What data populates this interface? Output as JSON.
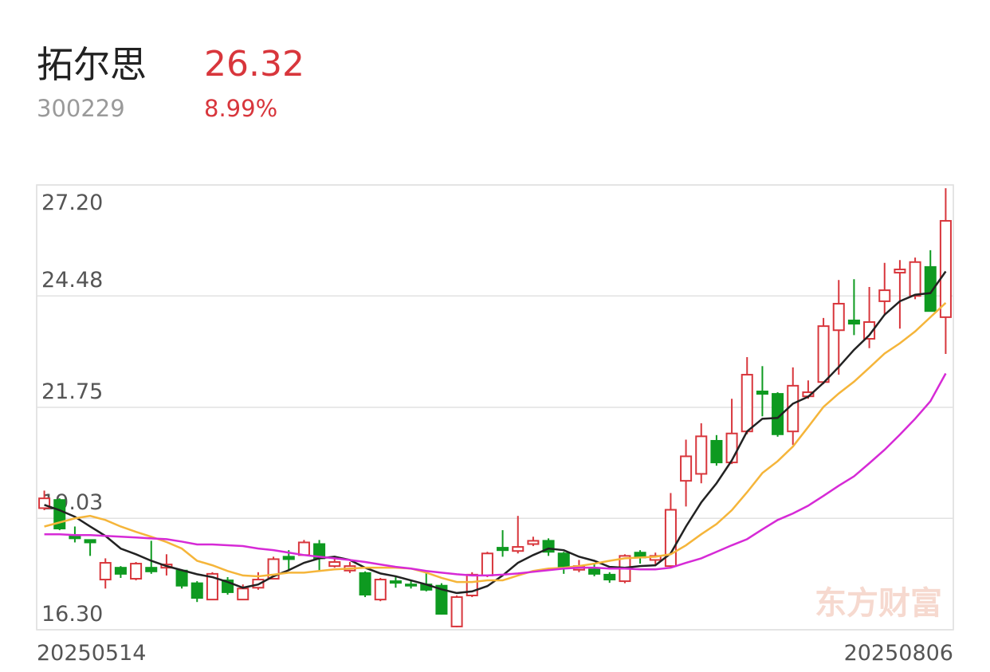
{
  "header": {
    "name": "拓尔思",
    "price": "26.32",
    "code": "300229",
    "change": "8.99%"
  },
  "chart_data": {
    "type": "candlestick",
    "watermark": "东方财富",
    "up_color": "#d8363c",
    "down_color": "#0e9a20",
    "categories": [
      "20250514",
      null,
      null,
      null,
      null,
      null,
      null,
      null,
      null,
      null,
      null,
      null,
      null,
      null,
      null,
      null,
      null,
      null,
      null,
      null,
      null,
      null,
      null,
      null,
      null,
      null,
      null,
      null,
      null,
      null,
      null,
      null,
      null,
      null,
      null,
      null,
      null,
      null,
      null,
      null,
      null,
      null,
      null,
      null,
      null,
      null,
      null,
      null,
      null,
      null,
      null,
      null,
      null,
      null,
      null,
      null,
      null,
      null,
      null,
      "20250806"
    ],
    "open": [
      19.28,
      19.48,
      18.6,
      18.5,
      17.53,
      17.82,
      17.55,
      17.82,
      17.82,
      17.75,
      17.44,
      17.04,
      17.51,
      17.04,
      17.33,
      17.55,
      18.09,
      18.13,
      18.4,
      17.86,
      17.75,
      17.69,
      17.04,
      17.49,
      17.41,
      17.41,
      17.38,
      16.38,
      17.14,
      17.63,
      18.31,
      18.23,
      18.4,
      18.48,
      18.17,
      17.77,
      17.78,
      17.65,
      17.49,
      18.19,
      18.01,
      17.86,
      19.95,
      20.12,
      20.93,
      20.4,
      21.16,
      22.14,
      22.08,
      21.16,
      22.02,
      22.37,
      23.64,
      23.88,
      23.43,
      24.35,
      25.05,
      24.48,
      25.19,
      23.96
    ],
    "close": [
      19.52,
      18.78,
      18.54,
      18.44,
      17.94,
      17.67,
      17.92,
      17.73,
      17.9,
      17.38,
      17.08,
      17.67,
      17.22,
      17.31,
      17.53,
      18.03,
      18.03,
      18.44,
      18.05,
      17.96,
      17.86,
      17.16,
      17.53,
      17.45,
      17.38,
      17.28,
      16.69,
      17.1,
      17.65,
      18.17,
      18.25,
      18.33,
      18.48,
      18.21,
      17.84,
      17.86,
      17.67,
      17.53,
      18.11,
      18.07,
      18.11,
      19.24,
      20.55,
      21.04,
      20.4,
      21.11,
      22.55,
      22.08,
      21.09,
      22.28,
      22.12,
      23.74,
      24.29,
      23.8,
      23.84,
      24.62,
      25.13,
      25.31,
      24.11,
      26.32
    ],
    "high": [
      19.71,
      19.52,
      18.83,
      18.5,
      18.05,
      17.86,
      17.96,
      18.48,
      18.15,
      17.78,
      17.49,
      17.71,
      17.59,
      17.41,
      17.71,
      18.09,
      18.25,
      18.5,
      18.5,
      18.11,
      17.96,
      17.73,
      17.57,
      17.61,
      17.51,
      17.71,
      17.44,
      17.14,
      17.71,
      18.21,
      18.74,
      19.09,
      18.58,
      18.54,
      18.21,
      18.01,
      17.94,
      17.71,
      18.15,
      18.25,
      18.19,
      19.65,
      20.96,
      21.36,
      21.07,
      21.96,
      22.98,
      22.76,
      22.12,
      22.73,
      22.41,
      23.94,
      24.87,
      24.89,
      24.7,
      25.29,
      25.36,
      25.42,
      25.6,
      27.12
    ],
    "low": [
      19.23,
      18.74,
      18.44,
      18.11,
      17.31,
      17.57,
      17.51,
      17.67,
      17.63,
      17.31,
      16.98,
      17.04,
      17.16,
      17.04,
      17.28,
      17.53,
      17.77,
      18.11,
      17.73,
      17.82,
      17.69,
      17.1,
      17.0,
      17.33,
      17.31,
      17.24,
      16.67,
      16.36,
      17.1,
      17.59,
      18.09,
      18.17,
      18.35,
      18.11,
      17.67,
      17.71,
      17.61,
      17.45,
      17.44,
      17.92,
      17.86,
      17.82,
      19.32,
      19.89,
      20.32,
      20.36,
      21.09,
      21.53,
      21.03,
      20.83,
      21.96,
      22.32,
      22.55,
      23.52,
      23.2,
      24.0,
      23.68,
      24.4,
      24.11,
      23.06
    ],
    "lines": [
      {
        "color": "#222222",
        "values": [
          19.36,
          19.23,
          19.07,
          18.83,
          18.6,
          18.29,
          18.15,
          17.99,
          17.86,
          17.76,
          17.66,
          17.59,
          17.47,
          17.33,
          17.41,
          17.61,
          17.76,
          17.94,
          18.05,
          18.09,
          18.01,
          17.82,
          17.68,
          17.61,
          17.51,
          17.41,
          17.29,
          17.2,
          17.24,
          17.37,
          17.63,
          17.94,
          18.13,
          18.29,
          18.25,
          18.09,
          17.99,
          17.84,
          17.82,
          17.86,
          17.88,
          18.17,
          18.83,
          19.42,
          19.89,
          20.45,
          21.16,
          21.47,
          21.49,
          21.84,
          22.01,
          22.35,
          22.74,
          23.16,
          23.52,
          24.02,
          24.35,
          24.51,
          24.55,
          25.08
        ]
      },
      {
        "color": "#f5b53a",
        "values": [
          18.83,
          18.93,
          19.03,
          19.09,
          18.99,
          18.83,
          18.7,
          18.58,
          18.45,
          18.29,
          17.99,
          17.88,
          17.74,
          17.63,
          17.61,
          17.65,
          17.7,
          17.7,
          17.74,
          17.78,
          17.8,
          17.82,
          17.82,
          17.82,
          17.8,
          17.7,
          17.57,
          17.47,
          17.47,
          17.51,
          17.51,
          17.63,
          17.74,
          17.8,
          17.82,
          17.86,
          17.92,
          17.99,
          18.05,
          18.07,
          18.09,
          18.15,
          18.37,
          18.64,
          18.89,
          19.23,
          19.67,
          20.14,
          20.43,
          20.79,
          21.27,
          21.76,
          22.09,
          22.38,
          22.72,
          23.07,
          23.32,
          23.61,
          23.96,
          24.31
        ]
      },
      {
        "color": "#d62ad6",
        "values": [
          18.64,
          18.64,
          18.62,
          18.62,
          18.6,
          18.58,
          18.56,
          18.54,
          18.52,
          18.46,
          18.39,
          18.39,
          18.37,
          18.35,
          18.29,
          18.25,
          18.19,
          18.13,
          18.09,
          18.05,
          18.01,
          17.96,
          17.9,
          17.84,
          17.8,
          17.74,
          17.7,
          17.66,
          17.63,
          17.63,
          17.65,
          17.68,
          17.72,
          17.76,
          17.8,
          17.82,
          17.82,
          17.8,
          17.8,
          17.78,
          17.78,
          17.82,
          17.94,
          18.05,
          18.21,
          18.37,
          18.52,
          18.76,
          18.99,
          19.15,
          19.34,
          19.58,
          19.83,
          20.06,
          20.38,
          20.71,
          21.08,
          21.47,
          21.9,
          22.58
        ]
      }
    ],
    "ylim": [
      16.3,
      27.2
    ],
    "yticks": [
      {
        "value": 16.3,
        "label": "16.30"
      },
      19.03,
      21.75,
      24.48,
      {
        "value": 27.2,
        "label": "27.20"
      }
    ],
    "grid": true
  }
}
